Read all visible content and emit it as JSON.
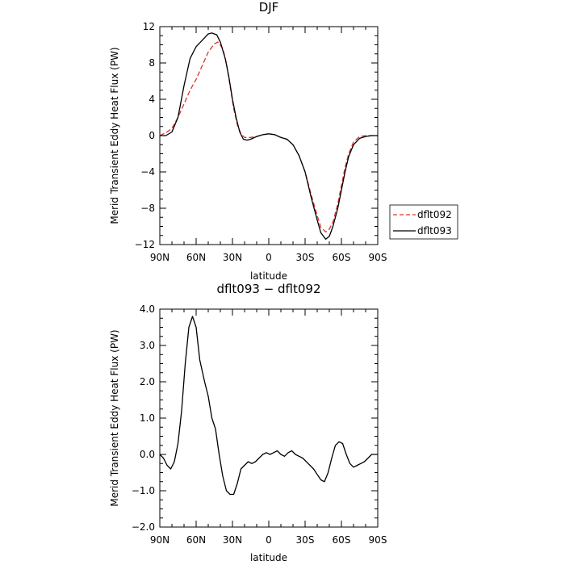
{
  "chart_data": [
    {
      "type": "line",
      "title": "DJF",
      "xlabel": "latitude",
      "ylabel": "Merid Transient Eddy Heat Flux (PW)",
      "xlim": [
        90,
        -90
      ],
      "ylim": [
        -12,
        12
      ],
      "xticks": [
        90,
        60,
        30,
        0,
        -30,
        -60,
        -90
      ],
      "xtick_labels": [
        "90N",
        "60N",
        "30N",
        "0",
        "30S",
        "60S",
        "90S"
      ],
      "yticks": [
        -12,
        -8,
        -4,
        0,
        4,
        8,
        12
      ],
      "ytick_labels": [
        "−12",
        "−8",
        "−4",
        "0",
        "4",
        "8",
        "12"
      ],
      "grid": false,
      "legend_placement": "right",
      "series": [
        {
          "name": "dflt092",
          "color": "#e03030",
          "dash": "dashed",
          "points": [
            [
              90,
              0.0
            ],
            [
              85,
              0.3
            ],
            [
              80,
              0.8
            ],
            [
              75,
              2.0
            ],
            [
              70,
              3.5
            ],
            [
              65,
              5.0
            ],
            [
              60,
              6.2
            ],
            [
              55,
              7.7
            ],
            [
              50,
              9.2
            ],
            [
              45,
              10.1
            ],
            [
              42,
              10.3
            ],
            [
              38,
              9.6
            ],
            [
              35,
              8.0
            ],
            [
              32,
              5.5
            ],
            [
              29,
              3.0
            ],
            [
              26,
              1.2
            ],
            [
              23,
              0.2
            ],
            [
              20,
              -0.2
            ],
            [
              15,
              -0.2
            ],
            [
              10,
              -0.1
            ],
            [
              5,
              0.1
            ],
            [
              0,
              0.2
            ],
            [
              -5,
              0.1
            ],
            [
              -10,
              -0.2
            ],
            [
              -15,
              -0.4
            ],
            [
              -20,
              -1.0
            ],
            [
              -25,
              -2.2
            ],
            [
              -30,
              -4.0
            ],
            [
              -35,
              -6.5
            ],
            [
              -40,
              -8.8
            ],
            [
              -43,
              -10.1
            ],
            [
              -47,
              -10.6
            ],
            [
              -50,
              -10.3
            ],
            [
              -53,
              -9.5
            ],
            [
              -57,
              -7.5
            ],
            [
              -60,
              -5.5
            ],
            [
              -63,
              -3.5
            ],
            [
              -66,
              -2.0
            ],
            [
              -70,
              -0.7
            ],
            [
              -75,
              -0.1
            ],
            [
              -80,
              0.0
            ],
            [
              -85,
              0.0
            ],
            [
              -90,
              0.0
            ]
          ]
        },
        {
          "name": "dflt093",
          "color": "#000000",
          "dash": "solid",
          "points": [
            [
              90,
              0.0
            ],
            [
              85,
              0.0
            ],
            [
              80,
              0.4
            ],
            [
              75,
              2.0
            ],
            [
              70,
              5.5
            ],
            [
              65,
              8.5
            ],
            [
              60,
              9.8
            ],
            [
              55,
              10.5
            ],
            [
              50,
              11.2
            ],
            [
              47,
              11.3
            ],
            [
              43,
              11.1
            ],
            [
              40,
              10.3
            ],
            [
              36,
              8.5
            ],
            [
              33,
              6.5
            ],
            [
              30,
              4.0
            ],
            [
              27,
              2.0
            ],
            [
              24,
              0.4
            ],
            [
              21,
              -0.4
            ],
            [
              18,
              -0.5
            ],
            [
              15,
              -0.4
            ],
            [
              10,
              -0.1
            ],
            [
              5,
              0.1
            ],
            [
              0,
              0.2
            ],
            [
              -5,
              0.1
            ],
            [
              -10,
              -0.2
            ],
            [
              -15,
              -0.4
            ],
            [
              -20,
              -1.0
            ],
            [
              -25,
              -2.2
            ],
            [
              -30,
              -4.0
            ],
            [
              -35,
              -6.8
            ],
            [
              -40,
              -9.3
            ],
            [
              -43,
              -10.7
            ],
            [
              -47,
              -11.4
            ],
            [
              -50,
              -11.1
            ],
            [
              -53,
              -10.0
            ],
            [
              -57,
              -8.0
            ],
            [
              -60,
              -6.0
            ],
            [
              -63,
              -4.0
            ],
            [
              -66,
              -2.3
            ],
            [
              -70,
              -1.0
            ],
            [
              -75,
              -0.3
            ],
            [
              -80,
              -0.1
            ],
            [
              -85,
              0.0
            ],
            [
              -90,
              0.0
            ]
          ]
        }
      ]
    },
    {
      "type": "line",
      "title": "dflt093 − dflt092",
      "xlabel": "latitude",
      "ylabel": "Merid Transient Eddy Heat Flux (PW)",
      "xlim": [
        90,
        -90
      ],
      "ylim": [
        -2,
        4
      ],
      "xticks": [
        90,
        60,
        30,
        0,
        -30,
        -60,
        -90
      ],
      "xtick_labels": [
        "90N",
        "60N",
        "30N",
        "0",
        "30S",
        "60S",
        "90S"
      ],
      "yticks": [
        -2,
        -1,
        0,
        1,
        2,
        3,
        4
      ],
      "ytick_labels": [
        "−2.0",
        "−1.0",
        "0.0",
        "1.0",
        "2.0",
        "3.0",
        "4.0"
      ],
      "grid": false,
      "series": [
        {
          "name": "",
          "color": "#000000",
          "dash": "solid",
          "points": [
            [
              90,
              0.0
            ],
            [
              87,
              -0.1
            ],
            [
              84,
              -0.3
            ],
            [
              81,
              -0.4
            ],
            [
              78,
              -0.2
            ],
            [
              75,
              0.3
            ],
            [
              72,
              1.2
            ],
            [
              69,
              2.5
            ],
            [
              66,
              3.5
            ],
            [
              63,
              3.8
            ],
            [
              60,
              3.5
            ],
            [
              57,
              2.6
            ],
            [
              53,
              2.0
            ],
            [
              50,
              1.6
            ],
            [
              47,
              1.0
            ],
            [
              44,
              0.7
            ],
            [
              41,
              0.0
            ],
            [
              38,
              -0.6
            ],
            [
              35,
              -1.0
            ],
            [
              32,
              -1.1
            ],
            [
              29,
              -1.1
            ],
            [
              26,
              -0.8
            ],
            [
              23,
              -0.4
            ],
            [
              20,
              -0.3
            ],
            [
              17,
              -0.2
            ],
            [
              14,
              -0.25
            ],
            [
              11,
              -0.2
            ],
            [
              8,
              -0.1
            ],
            [
              5,
              0.0
            ],
            [
              2,
              0.05
            ],
            [
              -1,
              0.0
            ],
            [
              -4,
              0.05
            ],
            [
              -7,
              0.1
            ],
            [
              -10,
              0.0
            ],
            [
              -13,
              -0.05
            ],
            [
              -16,
              0.05
            ],
            [
              -19,
              0.1
            ],
            [
              -22,
              0.0
            ],
            [
              -25,
              -0.05
            ],
            [
              -28,
              -0.1
            ],
            [
              -31,
              -0.2
            ],
            [
              -34,
              -0.3
            ],
            [
              -37,
              -0.4
            ],
            [
              -40,
              -0.55
            ],
            [
              -43,
              -0.7
            ],
            [
              -46,
              -0.75
            ],
            [
              -49,
              -0.5
            ],
            [
              -52,
              -0.1
            ],
            [
              -55,
              0.25
            ],
            [
              -58,
              0.35
            ],
            [
              -61,
              0.3
            ],
            [
              -64,
              0.0
            ],
            [
              -67,
              -0.25
            ],
            [
              -70,
              -0.35
            ],
            [
              -73,
              -0.3
            ],
            [
              -76,
              -0.25
            ],
            [
              -79,
              -0.2
            ],
            [
              -82,
              -0.1
            ],
            [
              -85,
              0.0
            ],
            [
              -88,
              0.0
            ],
            [
              -90,
              0.0
            ]
          ]
        }
      ]
    }
  ]
}
